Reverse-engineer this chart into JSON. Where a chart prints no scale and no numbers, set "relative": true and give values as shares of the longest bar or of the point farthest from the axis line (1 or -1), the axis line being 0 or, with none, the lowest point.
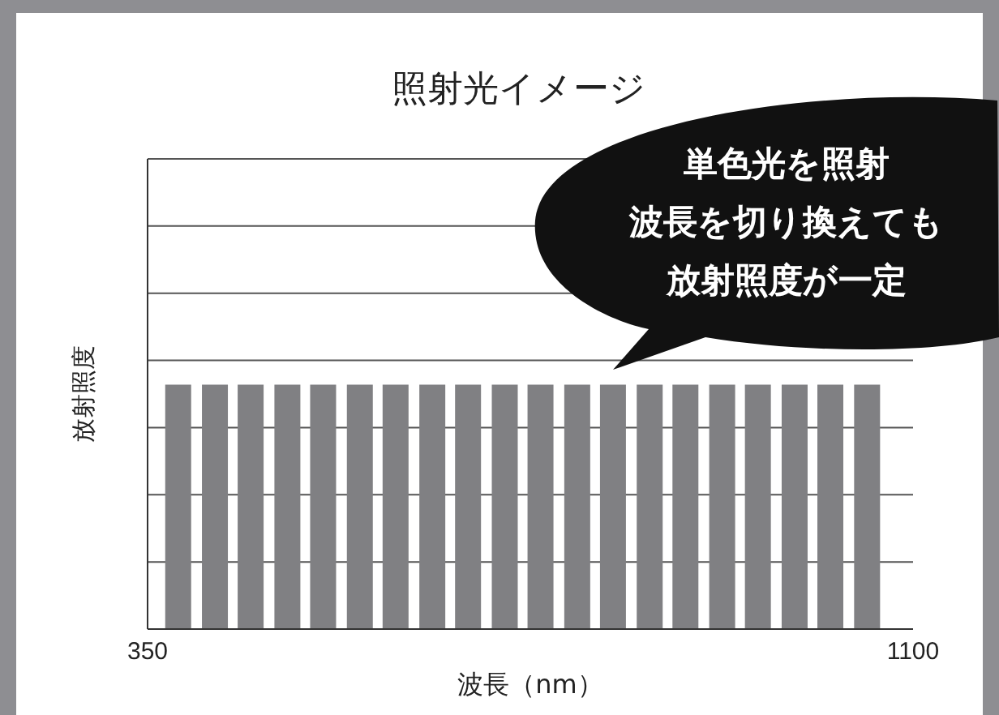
{
  "chart_data": {
    "type": "bar",
    "title": "照射光イメージ",
    "xlabel": "波長（nm）",
    "ylabel": "放射照度",
    "annotations": [
      "単色光を照射",
      "波長を切り換えても",
      "放射照度が一定"
    ],
    "relative": true,
    "x": [
      380,
      416,
      451,
      487,
      522,
      558,
      593,
      629,
      664,
      700,
      735,
      771,
      806,
      842,
      877,
      913,
      948,
      984,
      1019,
      1055
    ],
    "values": [
      1,
      1,
      1,
      1,
      1,
      1,
      1,
      1,
      1,
      1,
      1,
      1,
      1,
      1,
      1,
      1,
      1,
      1,
      1,
      1
    ],
    "color": "#808083",
    "xlim": [
      350,
      1100
    ],
    "xticks": [
      350,
      1100
    ],
    "grid": "y"
  }
}
